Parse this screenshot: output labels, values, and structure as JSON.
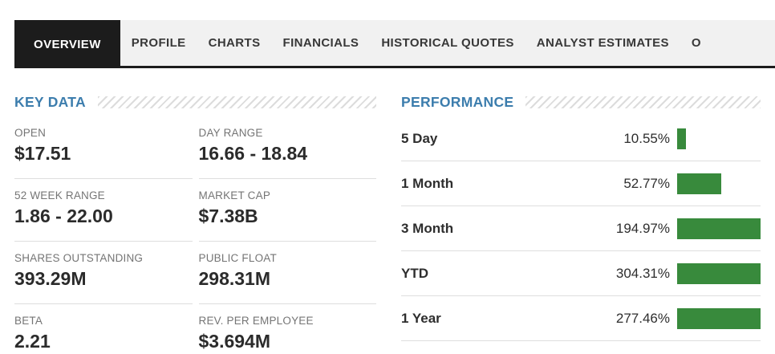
{
  "tabs": {
    "items": [
      {
        "label": "OVERVIEW",
        "active": true
      },
      {
        "label": "PROFILE",
        "active": false
      },
      {
        "label": "CHARTS",
        "active": false
      },
      {
        "label": "FINANCIALS",
        "active": false
      },
      {
        "label": "HISTORICAL QUOTES",
        "active": false
      },
      {
        "label": "ANALYST ESTIMATES",
        "active": false
      },
      {
        "label": "O",
        "active": false
      }
    ]
  },
  "key_data": {
    "title": "KEY DATA",
    "items": [
      {
        "label": "OPEN",
        "value": "$17.51"
      },
      {
        "label": "DAY RANGE",
        "value": "16.66 - 18.84"
      },
      {
        "label": "52 WEEK RANGE",
        "value": "1.86 - 22.00"
      },
      {
        "label": "MARKET CAP",
        "value": "$7.38B"
      },
      {
        "label": "SHARES OUTSTANDING",
        "value": "393.29M"
      },
      {
        "label": "PUBLIC FLOAT",
        "value": "298.31M"
      },
      {
        "label": "BETA",
        "value": "2.21"
      },
      {
        "label": "REV. PER EMPLOYEE",
        "value": "$3.694M"
      }
    ]
  },
  "performance": {
    "title": "PERFORMANCE",
    "bar_color": "#388a3c",
    "rows": [
      {
        "label": "5 Day",
        "value": "10.55%",
        "pct": 10.55
      },
      {
        "label": "1 Month",
        "value": "52.77%",
        "pct": 52.77
      },
      {
        "label": "3 Month",
        "value": "194.97%",
        "pct": 194.97
      },
      {
        "label": "YTD",
        "value": "304.31%",
        "pct": 304.31
      },
      {
        "label": "1 Year",
        "value": "277.46%",
        "pct": 277.46
      }
    ]
  },
  "colors": {
    "accent_blue": "#3c7dad",
    "positive_green": "#388a3c",
    "active_tab_bg": "#1c1c1c",
    "tabbar_bg": "#f1f1f1",
    "divider": "#dedede"
  }
}
